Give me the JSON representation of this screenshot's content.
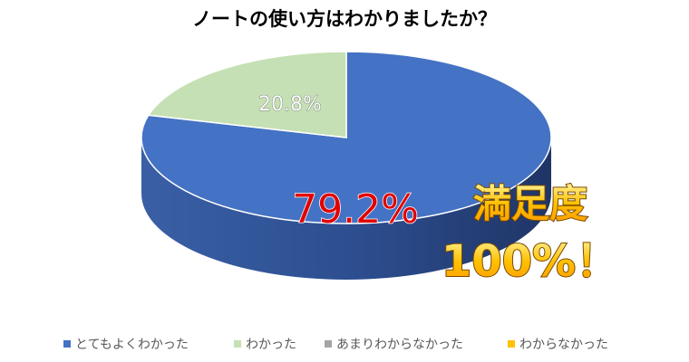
{
  "chart_data": {
    "type": "pie",
    "title": "ノートの使い方はわかりましたか？",
    "categories": [
      "とてもよくわかった",
      "わかった",
      "あまりわからなかった",
      "わからなかった"
    ],
    "values": [
      79.2,
      20.8,
      0,
      0
    ],
    "value_labels": [
      "79.2%",
      "20.8%",
      null,
      null
    ],
    "colors": [
      "#4472c4",
      "#c5e0b4",
      "#a5a5a5",
      "#ffc000"
    ],
    "annotations": [
      "満足度",
      "100%！"
    ],
    "legend": "bottom"
  }
}
